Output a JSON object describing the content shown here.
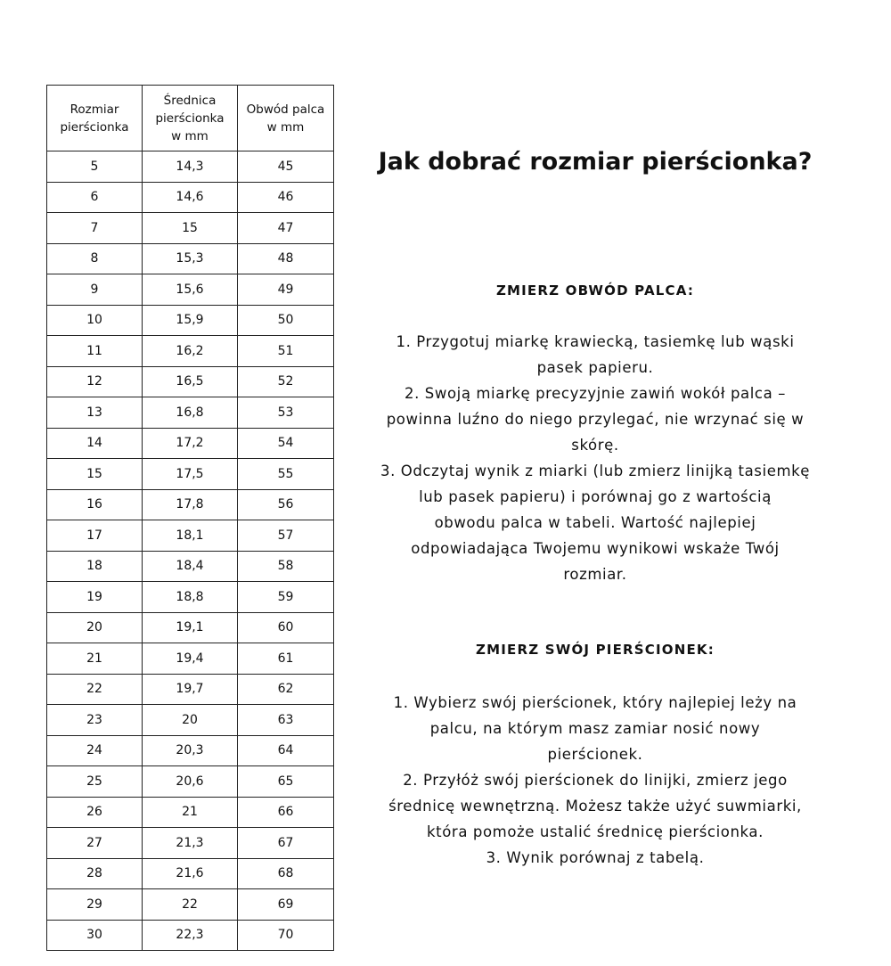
{
  "table": {
    "headers": [
      [
        "Rozmiar",
        "pierścionka"
      ],
      [
        "Średnica",
        "pierścionka",
        "w mm"
      ],
      [
        "Obwód palca",
        "w mm"
      ]
    ],
    "rows": [
      [
        "5",
        "14,3",
        "45"
      ],
      [
        "6",
        "14,6",
        "46"
      ],
      [
        "7",
        "15",
        "47"
      ],
      [
        "8",
        "15,3",
        "48"
      ],
      [
        "9",
        "15,6",
        "49"
      ],
      [
        "10",
        "15,9",
        "50"
      ],
      [
        "11",
        "16,2",
        "51"
      ],
      [
        "12",
        "16,5",
        "52"
      ],
      [
        "13",
        "16,8",
        "53"
      ],
      [
        "14",
        "17,2",
        "54"
      ],
      [
        "15",
        "17,5",
        "55"
      ],
      [
        "16",
        "17,8",
        "56"
      ],
      [
        "17",
        "18,1",
        "57"
      ],
      [
        "18",
        "18,4",
        "58"
      ],
      [
        "19",
        "18,8",
        "59"
      ],
      [
        "20",
        "19,1",
        "60"
      ],
      [
        "21",
        "19,4",
        "61"
      ],
      [
        "22",
        "19,7",
        "62"
      ],
      [
        "23",
        "20",
        "63"
      ],
      [
        "24",
        "20,3",
        "64"
      ],
      [
        "25",
        "20,6",
        "65"
      ],
      [
        "26",
        "21",
        "66"
      ],
      [
        "27",
        "21,3",
        "67"
      ],
      [
        "28",
        "21,6",
        "68"
      ],
      [
        "29",
        "22",
        "69"
      ],
      [
        "30",
        "22,3",
        "70"
      ]
    ]
  },
  "title": "Jak dobrać rozmiar pierścionka?",
  "section1": {
    "heading": "ZMIERZ OBWÓD PALCA:",
    "lines": [
      "1. Przygotuj miarkę krawiecką, tasiemkę lub wąski",
      "pasek papieru.",
      "2. Swoją miarkę precyzyjnie zawiń wokół palca –",
      "powinna luźno do niego przylegać, nie wrzynać się w",
      "skórę.",
      "3. Odczytaj wynik z miarki (lub zmierz linijką tasiemkę",
      "lub pasek papieru) i porównaj go z wartością",
      "obwodu palca w tabeli. Wartość najlepiej",
      "odpowiadająca Twojemu wynikowi wskaże Twój",
      "rozmiar."
    ]
  },
  "section2": {
    "heading": "ZMIERZ SWÓJ PIERŚCIONEK:",
    "lines": [
      "1.  Wybierz swój pierścionek, który najlepiej leży na",
      "palcu, na którym masz zamiar nosić nowy",
      "pierścionek.",
      "2. Przyłóż swój pierścionek do linijki, zmierz jego",
      "średnicę wewnętrzną. Możesz także użyć suwmiarki,",
      "która pomoże ustalić średnicę pierścionka.",
      "3. Wynik porównaj z tabelą."
    ]
  }
}
